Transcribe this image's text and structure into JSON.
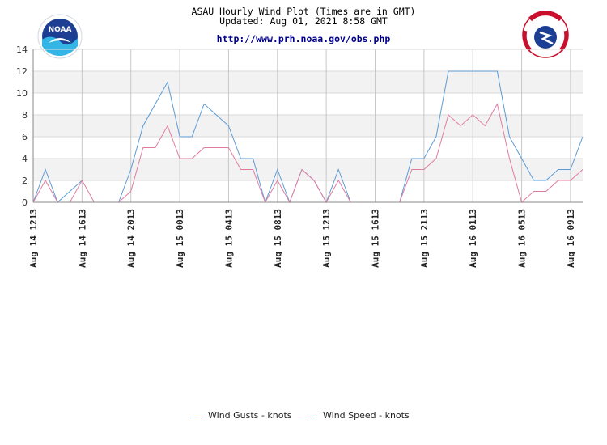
{
  "header": {
    "title": "ASAU Hourly Wind Plot (Times are in GMT)",
    "updated": "Updated: Aug 01, 2021 8:58 GMT",
    "url": "http://www.prh.noaa.gov/obs.php"
  },
  "logos": {
    "left": "noaa-logo",
    "right": "nws-logo"
  },
  "chart_data": {
    "type": "line",
    "ylim": [
      0,
      14
    ],
    "yticks": [
      0,
      2,
      4,
      6,
      8,
      10,
      12,
      14
    ],
    "grid": true,
    "legend_position": "bottom",
    "x_count": 46,
    "xtick_labels": [
      {
        "index": 0,
        "label": "Aug 14 1213"
      },
      {
        "index": 4,
        "label": "Aug 14 1613"
      },
      {
        "index": 8,
        "label": "Aug 14 2013"
      },
      {
        "index": 12,
        "label": "Aug 15 0013"
      },
      {
        "index": 16,
        "label": "Aug 15 0413"
      },
      {
        "index": 20,
        "label": "Aug 15 0813"
      },
      {
        "index": 24,
        "label": "Aug 15 1213"
      },
      {
        "index": 28,
        "label": "Aug 15 1613"
      },
      {
        "index": 32,
        "label": "Aug 15 2113"
      },
      {
        "index": 36,
        "label": "Aug 16 0113"
      },
      {
        "index": 40,
        "label": "Aug 16 0513"
      },
      {
        "index": 44,
        "label": "Aug 16 0913"
      }
    ],
    "series": [
      {
        "name": "Wind Gusts - knots",
        "color": "#5b9bd5",
        "values": [
          0,
          3,
          0,
          1,
          2,
          null,
          null,
          0,
          3,
          7,
          9,
          11,
          6,
          6,
          9,
          8,
          7,
          4,
          4,
          0,
          3,
          0,
          3,
          2,
          0,
          3,
          0,
          null,
          null,
          null,
          0,
          4,
          4,
          6,
          12,
          12,
          12,
          12,
          12,
          6,
          4,
          2,
          2,
          3,
          3,
          6
        ]
      },
      {
        "name": "Wind Speed - knots",
        "color": "#e07ba0",
        "values": [
          0,
          2,
          0,
          0,
          2,
          0,
          null,
          0,
          1,
          5,
          5,
          7,
          4,
          4,
          5,
          5,
          5,
          3,
          3,
          0,
          2,
          0,
          3,
          2,
          0,
          2,
          0,
          null,
          null,
          null,
          0,
          3,
          3,
          4,
          8,
          7,
          8,
          7,
          9,
          4,
          0,
          1,
          1,
          2,
          2,
          3
        ]
      }
    ]
  }
}
